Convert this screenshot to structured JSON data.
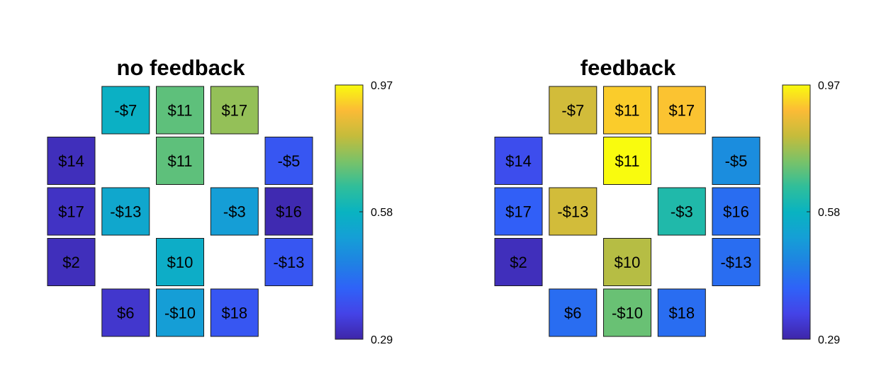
{
  "chart_data": [
    {
      "type": "heatmap",
      "title": "no feedback",
      "cells": [
        {
          "row": 0,
          "col": 1,
          "label": "-$7",
          "value": 0.62
        },
        {
          "row": 0,
          "col": 2,
          "label": "$11",
          "value": 0.74
        },
        {
          "row": 0,
          "col": 3,
          "label": "$17",
          "value": 0.79
        },
        {
          "row": 1,
          "col": 0,
          "label": "$14",
          "value": 0.31
        },
        {
          "row": 1,
          "col": 2,
          "label": "$11",
          "value": 0.74
        },
        {
          "row": 1,
          "col": 4,
          "label": "-$5",
          "value": 0.4
        },
        {
          "row": 2,
          "col": 0,
          "label": "$17",
          "value": 0.32
        },
        {
          "row": 2,
          "col": 1,
          "label": "-$13",
          "value": 0.59
        },
        {
          "row": 2,
          "col": 3,
          "label": "-$3",
          "value": 0.56
        },
        {
          "row": 2,
          "col": 4,
          "label": "$16",
          "value": 0.3
        },
        {
          "row": 3,
          "col": 0,
          "label": "$2",
          "value": 0.31
        },
        {
          "row": 3,
          "col": 2,
          "label": "$10",
          "value": 0.61
        },
        {
          "row": 3,
          "col": 4,
          "label": "-$13",
          "value": 0.4
        },
        {
          "row": 4,
          "col": 1,
          "label": "$6",
          "value": 0.33
        },
        {
          "row": 4,
          "col": 2,
          "label": "-$10",
          "value": 0.56
        },
        {
          "row": 4,
          "col": 3,
          "label": "$18",
          "value": 0.4
        }
      ],
      "colorbar": {
        "ticks": [
          "0.97",
          "0.58",
          "0.29"
        ],
        "min": 0.29,
        "max": 0.97,
        "colormap": "parula"
      }
    },
    {
      "type": "heatmap",
      "title": "feedback",
      "cells": [
        {
          "row": 0,
          "col": 1,
          "label": "-$7",
          "value": 0.85
        },
        {
          "row": 0,
          "col": 2,
          "label": "$11",
          "value": 0.92
        },
        {
          "row": 0,
          "col": 3,
          "label": "$17",
          "value": 0.91
        },
        {
          "row": 1,
          "col": 0,
          "label": "$14",
          "value": 0.38
        },
        {
          "row": 1,
          "col": 2,
          "label": "$11",
          "value": 0.97
        },
        {
          "row": 1,
          "col": 4,
          "label": "-$5",
          "value": 0.52
        },
        {
          "row": 2,
          "col": 0,
          "label": "$17",
          "value": 0.42
        },
        {
          "row": 2,
          "col": 1,
          "label": "-$13",
          "value": 0.85
        },
        {
          "row": 2,
          "col": 3,
          "label": "-$3",
          "value": 0.67
        },
        {
          "row": 2,
          "col": 4,
          "label": "$16",
          "value": 0.45
        },
        {
          "row": 3,
          "col": 0,
          "label": "$2",
          "value": 0.31
        },
        {
          "row": 3,
          "col": 2,
          "label": "$10",
          "value": 0.82
        },
        {
          "row": 3,
          "col": 4,
          "label": "-$13",
          "value": 0.45
        },
        {
          "row": 4,
          "col": 1,
          "label": "$6",
          "value": 0.45
        },
        {
          "row": 4,
          "col": 2,
          "label": "-$10",
          "value": 0.75
        },
        {
          "row": 4,
          "col": 3,
          "label": "$18",
          "value": 0.45
        }
      ],
      "colorbar": {
        "ticks": [
          "0.97",
          "0.58",
          "0.29"
        ],
        "min": 0.29,
        "max": 0.97,
        "colormap": "parula"
      }
    }
  ]
}
